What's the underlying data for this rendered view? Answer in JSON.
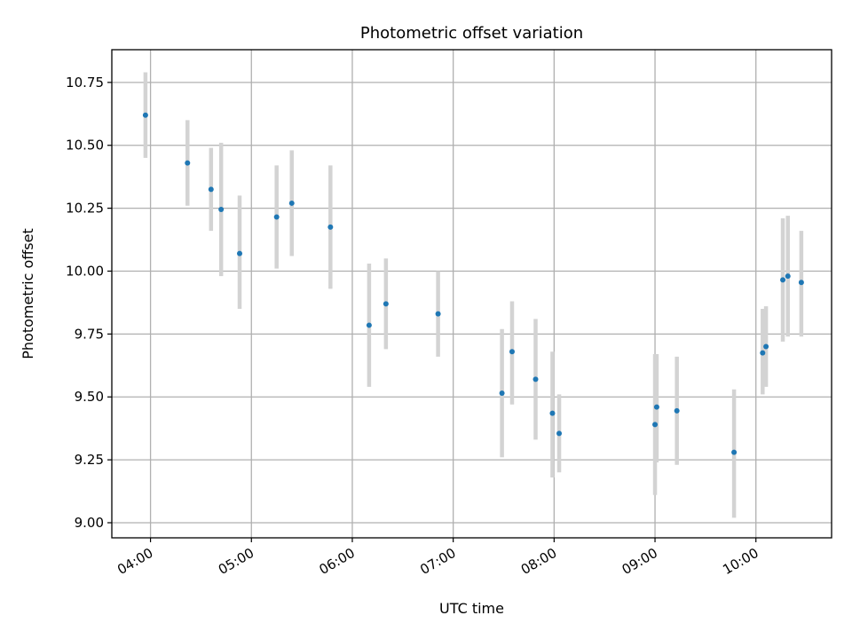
{
  "chart_data": {
    "type": "scatter",
    "title": "Photometric offset variation",
    "xlabel": "UTC time",
    "ylabel": "Photometric offset",
    "xlim": [
      "03:37",
      "10:45"
    ],
    "ylim": [
      8.94,
      10.88
    ],
    "x_ticks": [
      "04:00",
      "05:00",
      "06:00",
      "07:00",
      "08:00",
      "09:00",
      "10:00"
    ],
    "y_ticks": [
      "9.00",
      "9.25",
      "9.50",
      "9.75",
      "10.00",
      "10.25",
      "10.50",
      "10.75"
    ],
    "grid": true,
    "colors": {
      "point": "#1f77b4",
      "errorbar": "#d3d3d3"
    },
    "points": [
      {
        "x": "03:57",
        "y": 10.62,
        "ylo": 10.45,
        "yhi": 10.79
      },
      {
        "x": "04:22",
        "y": 10.43,
        "ylo": 10.26,
        "yhi": 10.6
      },
      {
        "x": "04:36",
        "y": 10.325,
        "ylo": 10.16,
        "yhi": 10.49
      },
      {
        "x": "04:42",
        "y": 10.245,
        "ylo": 9.98,
        "yhi": 10.51
      },
      {
        "x": "04:53",
        "y": 10.07,
        "ylo": 9.85,
        "yhi": 10.3
      },
      {
        "x": "05:15",
        "y": 10.215,
        "ylo": 10.01,
        "yhi": 10.42
      },
      {
        "x": "05:24",
        "y": 10.27,
        "ylo": 10.06,
        "yhi": 10.48
      },
      {
        "x": "05:47",
        "y": 10.175,
        "ylo": 9.93,
        "yhi": 10.42
      },
      {
        "x": "06:10",
        "y": 9.785,
        "ylo": 9.54,
        "yhi": 10.03
      },
      {
        "x": "06:20",
        "y": 9.87,
        "ylo": 9.69,
        "yhi": 10.05
      },
      {
        "x": "06:51",
        "y": 9.83,
        "ylo": 9.66,
        "yhi": 10.0
      },
      {
        "x": "07:29",
        "y": 9.515,
        "ylo": 9.26,
        "yhi": 9.77
      },
      {
        "x": "07:35",
        "y": 9.68,
        "ylo": 9.47,
        "yhi": 9.88
      },
      {
        "x": "07:49",
        "y": 9.57,
        "ylo": 9.33,
        "yhi": 9.81
      },
      {
        "x": "07:59",
        "y": 9.435,
        "ylo": 9.18,
        "yhi": 9.68
      },
      {
        "x": "08:03",
        "y": 9.355,
        "ylo": 9.2,
        "yhi": 9.51
      },
      {
        "x": "09:00",
        "y": 9.39,
        "ylo": 9.11,
        "yhi": 9.67
      },
      {
        "x": "09:01",
        "y": 9.46,
        "ylo": 9.24,
        "yhi": 9.67
      },
      {
        "x": "09:13",
        "y": 9.445,
        "ylo": 9.23,
        "yhi": 9.66
      },
      {
        "x": "09:47",
        "y": 9.28,
        "ylo": 9.02,
        "yhi": 9.53
      },
      {
        "x": "10:04",
        "y": 9.675,
        "ylo": 9.51,
        "yhi": 9.85
      },
      {
        "x": "10:06",
        "y": 9.7,
        "ylo": 9.54,
        "yhi": 9.86
      },
      {
        "x": "10:16",
        "y": 9.965,
        "ylo": 9.72,
        "yhi": 10.21
      },
      {
        "x": "10:19",
        "y": 9.98,
        "ylo": 9.74,
        "yhi": 10.22
      },
      {
        "x": "10:27",
        "y": 9.955,
        "ylo": 9.74,
        "yhi": 10.16
      }
    ]
  }
}
